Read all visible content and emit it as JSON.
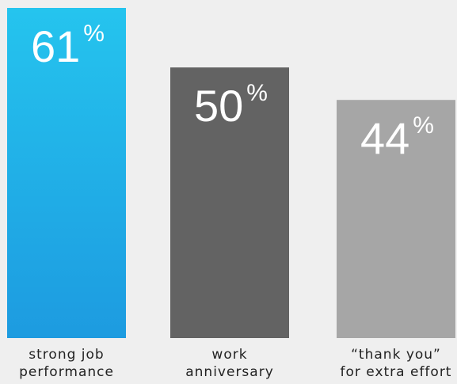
{
  "chart_data": {
    "type": "bar",
    "categories": [
      [
        "strong job",
        "performance"
      ],
      [
        "work",
        "anniversary"
      ],
      [
        "“thank you”",
        "for extra effort"
      ]
    ],
    "values": [
      61,
      50,
      44
    ],
    "value_unit": "%",
    "colors": [
      "#1d9be0",
      "#636363",
      "#a6a6a6"
    ],
    "gradient_top": "#25c4ee",
    "ylim": [
      0,
      61
    ],
    "grid": false,
    "legend": "none",
    "title": "",
    "xlabel": "",
    "ylabel": ""
  }
}
